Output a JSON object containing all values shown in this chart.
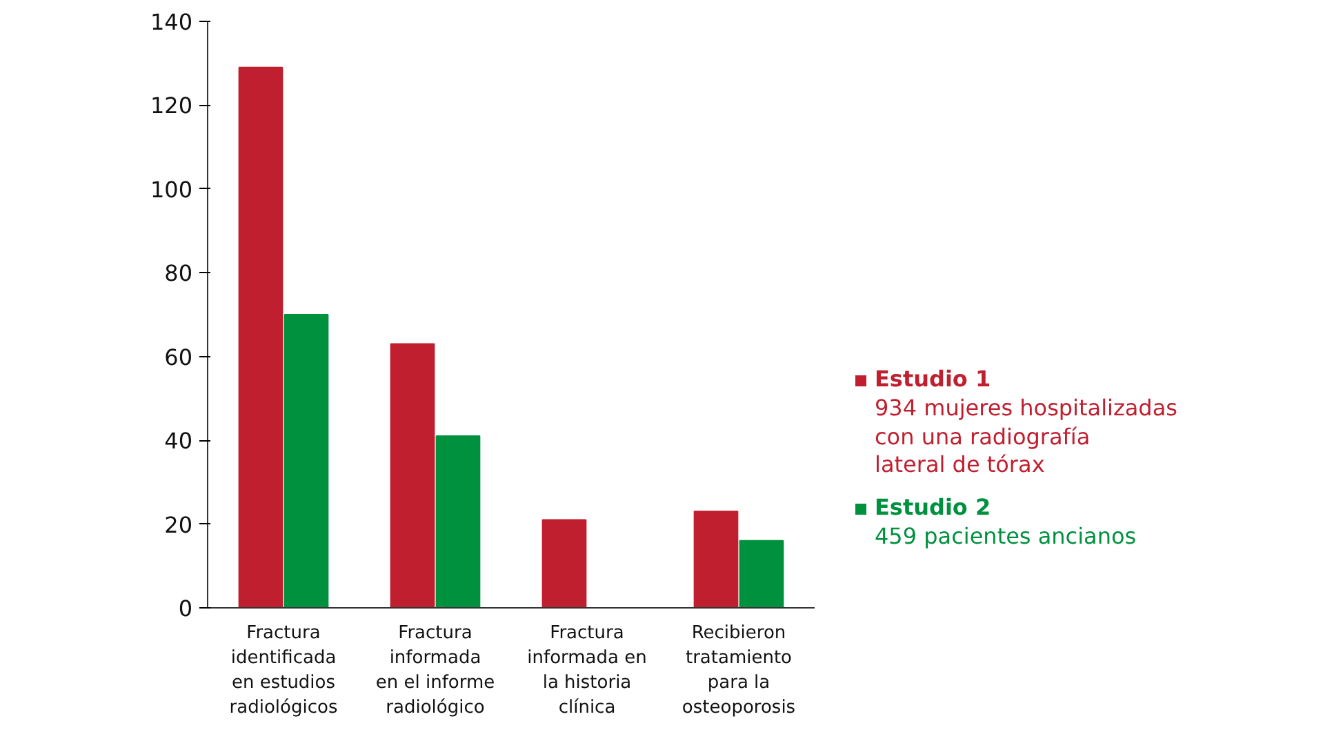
{
  "chart_data": {
    "type": "bar",
    "categories": [
      "Fractura\nidentificada\nen estudios\nradiológicos",
      "Fractura\ninformada\nen el informe\nradiológico",
      "Fractura\ninformada en\nla historia\nclínica",
      "Recibieron\ntratamiento\npara la\nosteoporosis"
    ],
    "series": [
      {
        "name": "Estudio 1",
        "color": "#c01f2f",
        "values": [
          129,
          63,
          21,
          23
        ]
      },
      {
        "name": "Estudio 2",
        "color": "#00913f",
        "values": [
          70,
          41,
          null,
          16
        ]
      }
    ],
    "ylim": [
      0,
      140
    ],
    "yticks": [
      0,
      20,
      40,
      60,
      80,
      100,
      120,
      140
    ],
    "grid": false,
    "legend": "right",
    "annotations": [
      "934 mujeres hospitalizadas\ncon una radiografía\nlateral de tórax",
      "459 pacientes ancianos"
    ]
  }
}
